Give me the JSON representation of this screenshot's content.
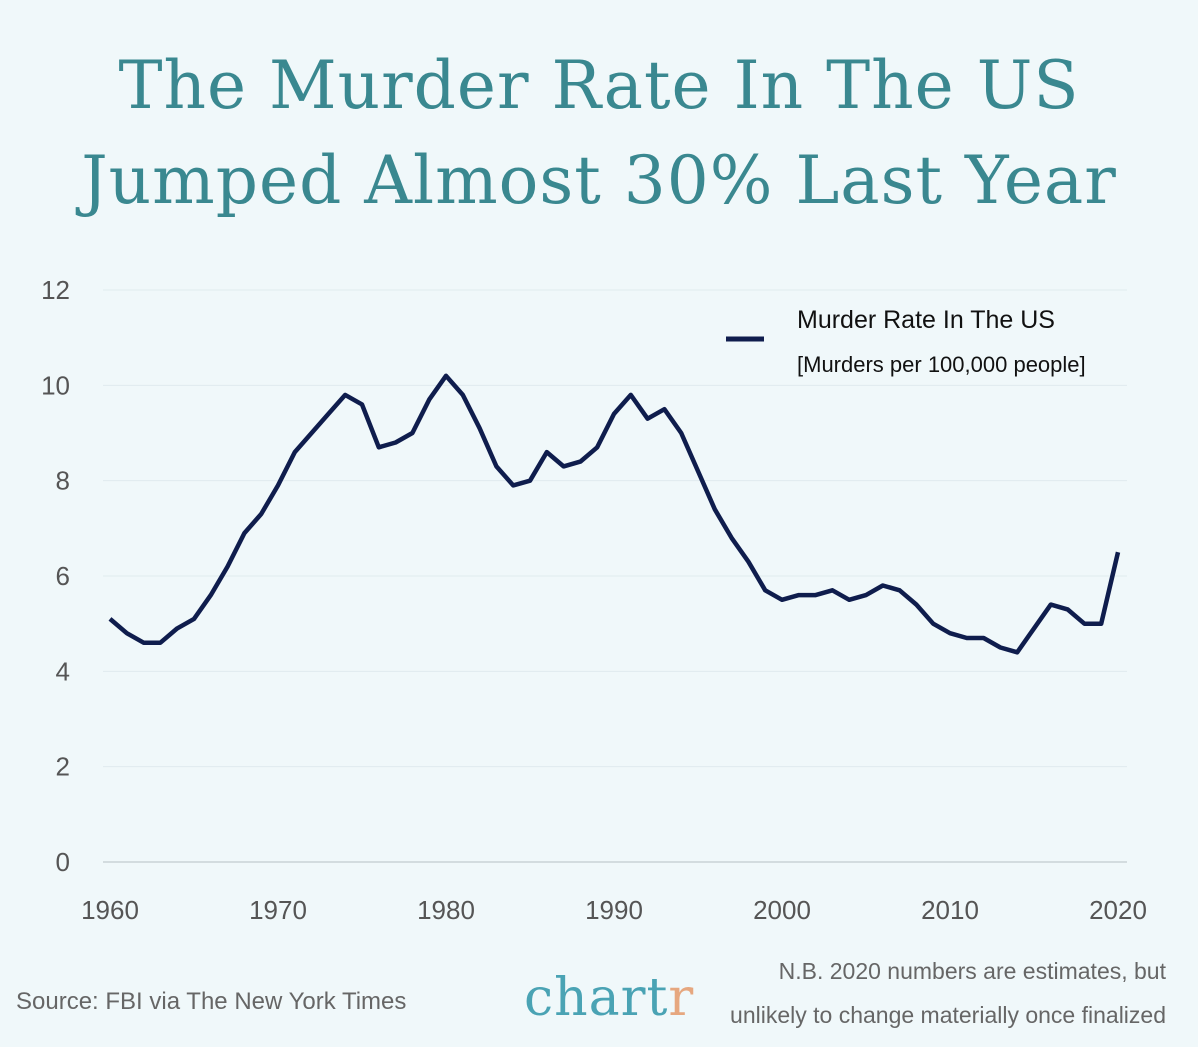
{
  "title_line1": "The Murder Rate In The US",
  "title_line2": "Jumped Almost 30% Last Year",
  "source": "Source: FBI via The New York Times",
  "logo_text": "chartr",
  "note_line1": "N.B. 2020 numbers are estimates, but",
  "note_line2": "unlikely to change materially once finalized",
  "colors": {
    "title": "#3a8890",
    "line": "#0f1d4d",
    "background": "#f0f8fa",
    "logo": "#4aa3b4",
    "logo_accent": "#e6a77f"
  },
  "chart_data": {
    "type": "line",
    "legend": {
      "name": "Murder Rate In The US",
      "subtitle": "[Murders per 100,000 people]",
      "placement": "top-right"
    },
    "xlim": [
      1960,
      2020
    ],
    "ylim": [
      0,
      12
    ],
    "xticks": [
      1960,
      1970,
      1980,
      1990,
      2000,
      2010,
      2020
    ],
    "yticks": [
      0,
      2,
      4,
      6,
      8,
      10,
      12
    ],
    "grid": "horizontal",
    "series": [
      {
        "name": "Murder Rate In The US",
        "x": [
          1960,
          1961,
          1962,
          1963,
          1964,
          1965,
          1966,
          1967,
          1968,
          1969,
          1970,
          1971,
          1972,
          1973,
          1974,
          1975,
          1976,
          1977,
          1978,
          1979,
          1980,
          1981,
          1982,
          1983,
          1984,
          1985,
          1986,
          1987,
          1988,
          1989,
          1990,
          1991,
          1992,
          1993,
          1994,
          1995,
          1996,
          1997,
          1998,
          1999,
          2000,
          2001,
          2002,
          2003,
          2004,
          2005,
          2006,
          2007,
          2008,
          2009,
          2010,
          2011,
          2012,
          2013,
          2014,
          2015,
          2016,
          2017,
          2018,
          2019,
          2020
        ],
        "y": [
          5.1,
          4.8,
          4.6,
          4.6,
          4.9,
          5.1,
          5.6,
          6.2,
          6.9,
          7.3,
          7.9,
          8.6,
          9.0,
          9.4,
          9.8,
          9.6,
          8.7,
          8.8,
          9.0,
          9.7,
          10.2,
          9.8,
          9.1,
          8.3,
          7.9,
          8.0,
          8.6,
          8.3,
          8.4,
          8.7,
          9.4,
          9.8,
          9.3,
          9.5,
          9.0,
          8.2,
          7.4,
          6.8,
          6.3,
          5.7,
          5.5,
          5.6,
          5.6,
          5.7,
          5.5,
          5.6,
          5.8,
          5.7,
          5.4,
          5.0,
          4.8,
          4.7,
          4.7,
          4.5,
          4.4,
          4.9,
          5.4,
          5.3,
          5.0,
          5.0,
          6.5
        ]
      }
    ]
  }
}
